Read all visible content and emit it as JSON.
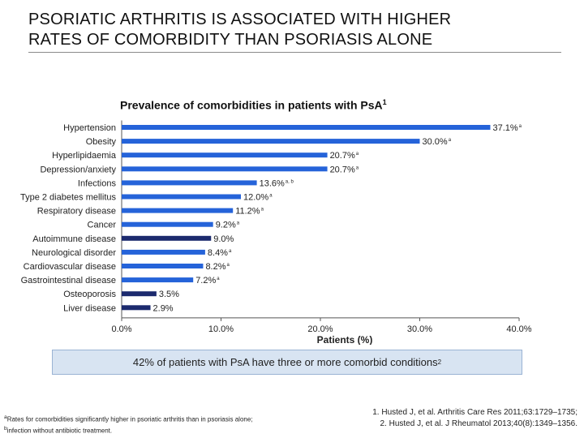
{
  "slide": {
    "title_line1": "PSORIATIC ARTHRITIS IS ASSOCIATED WITH HIGHER",
    "title_line2": "RATES OF COMORBIDITY THAN PSORIASIS ALONE"
  },
  "chart_data": {
    "type": "bar",
    "orientation": "horizontal",
    "title": "Prevalence of comorbidities in patients with PsA",
    "title_ref": "1",
    "xlabel": "Patients (%)",
    "xlim": [
      0,
      40
    ],
    "xticks": [
      0,
      10,
      20,
      30,
      40
    ],
    "xtick_labels": [
      "0.0%",
      "10.0%",
      "20.0%",
      "30.0%",
      "40.0%"
    ],
    "grid": false,
    "categories": [
      "Hypertension",
      "Obesity",
      "Hyperlipidaemia",
      "Depression/anxiety",
      "Infections",
      "Type 2 diabetes mellitus",
      "Respiratory disease",
      "Cancer",
      "Autoimmune disease",
      "Neurological disorder",
      "Cardiovascular disease",
      "Gastrointestinal disease",
      "Osteoporosis",
      "Liver disease"
    ],
    "values": [
      37.1,
      30.0,
      20.7,
      20.7,
      13.6,
      12.0,
      11.2,
      9.2,
      9.0,
      8.4,
      8.2,
      7.2,
      3.5,
      2.9
    ],
    "value_labels": [
      "37.1%",
      "30.0%",
      "20.7%",
      "20.7%",
      "13.6%",
      "12.0%",
      "11.2%",
      "9.2%",
      "9.0%",
      "8.4%",
      "8.2%",
      "7.2%",
      "3.5%",
      "2.9%"
    ],
    "markers": [
      "a",
      "a",
      "a",
      "a",
      "a, b",
      "a",
      "a",
      "a",
      "",
      "a",
      "a",
      "a",
      "",
      ""
    ],
    "colors": [
      "#2563d9",
      "#2563d9",
      "#2563d9",
      "#2563d9",
      "#2563d9",
      "#2563d9",
      "#2563d9",
      "#2563d9",
      "#1c2a6e",
      "#2563d9",
      "#2563d9",
      "#2563d9",
      "#1c2a6e",
      "#1c2a6e"
    ]
  },
  "summary": {
    "text": "42% of patients with PsA have three or more comorbid conditions",
    "ref": "2"
  },
  "footnote": {
    "marker_a": "a",
    "text_a": "Rates for comorbidities significantly higher in psoriatic arthritis than in psoriasis alone;",
    "marker_b": "b",
    "text_b": "infection without antibiotic treatment."
  },
  "references": {
    "ref1": "1. Husted J, et al. Arthritis Care Res 2011;63:1729–1735;",
    "ref2": "2. Husted J, et al. J Rheumatol 2013;40(8):1349–1356."
  }
}
